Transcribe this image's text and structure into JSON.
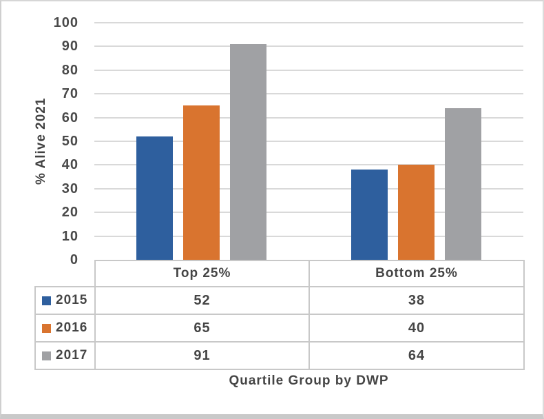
{
  "chart_data": {
    "type": "bar",
    "title": "",
    "xlabel": "Quartile Group by DWP",
    "ylabel": "% Alive 2021",
    "categories": [
      "Top 25%",
      "Bottom 25%"
    ],
    "series": [
      {
        "name": "2015",
        "color": "#2e5f9e",
        "values": [
          52,
          38
        ]
      },
      {
        "name": "2016",
        "color": "#d9742f",
        "values": [
          65,
          40
        ]
      },
      {
        "name": "2017",
        "color": "#a0a1a4",
        "values": [
          91,
          64
        ]
      }
    ],
    "ylim": [
      0,
      100
    ],
    "yticks": [
      100,
      90,
      80,
      70,
      60,
      50,
      40,
      30,
      20,
      10,
      0
    ],
    "grid": true,
    "gridline_color": "#d9d9d9",
    "legend_position": "data-table-left",
    "data_table_shown": true
  },
  "style_colors": {
    "text": "#454545",
    "table_border": "#c8c8c8",
    "frame_border": "#cfcfcf"
  }
}
